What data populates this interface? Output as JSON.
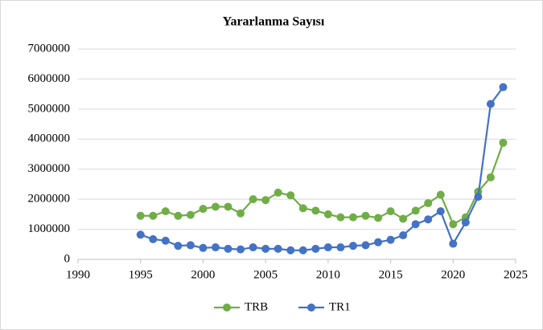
{
  "chart_data": {
    "type": "line",
    "title": "Yararlanma Sayısı",
    "x": [
      1995,
      1996,
      1997,
      1998,
      1999,
      2000,
      2001,
      2002,
      2003,
      2004,
      2005,
      2006,
      2007,
      2008,
      2009,
      2010,
      2011,
      2012,
      2013,
      2014,
      2015,
      2016,
      2017,
      2018,
      2019,
      2020,
      2021,
      2022,
      2023,
      2024
    ],
    "series": [
      {
        "name": "TRB",
        "color": "#70ad47",
        "values": [
          1450000,
          1450000,
          1600000,
          1450000,
          1480000,
          1680000,
          1750000,
          1750000,
          1530000,
          2000000,
          1970000,
          2220000,
          2130000,
          1700000,
          1620000,
          1500000,
          1400000,
          1400000,
          1450000,
          1380000,
          1600000,
          1350000,
          1620000,
          1870000,
          2150000,
          1170000,
          1400000,
          2250000,
          2730000,
          3880000
        ]
      },
      {
        "name": "TR1",
        "color": "#4472c4",
        "values": [
          820000,
          670000,
          620000,
          450000,
          470000,
          380000,
          400000,
          350000,
          330000,
          400000,
          350000,
          350000,
          300000,
          300000,
          350000,
          400000,
          400000,
          450000,
          470000,
          570000,
          650000,
          800000,
          1170000,
          1330000,
          1600000,
          520000,
          1230000,
          2080000,
          5170000,
          5730000
        ]
      }
    ],
    "xlim": [
      1990,
      2025
    ],
    "xticks": [
      1990,
      1995,
      2000,
      2005,
      2010,
      2015,
      2020,
      2025
    ],
    "ylim": [
      0,
      7000000
    ],
    "yticks": [
      0,
      1000000,
      2000000,
      3000000,
      4000000,
      5000000,
      6000000,
      7000000
    ],
    "grid": true,
    "legend": "bottom"
  }
}
